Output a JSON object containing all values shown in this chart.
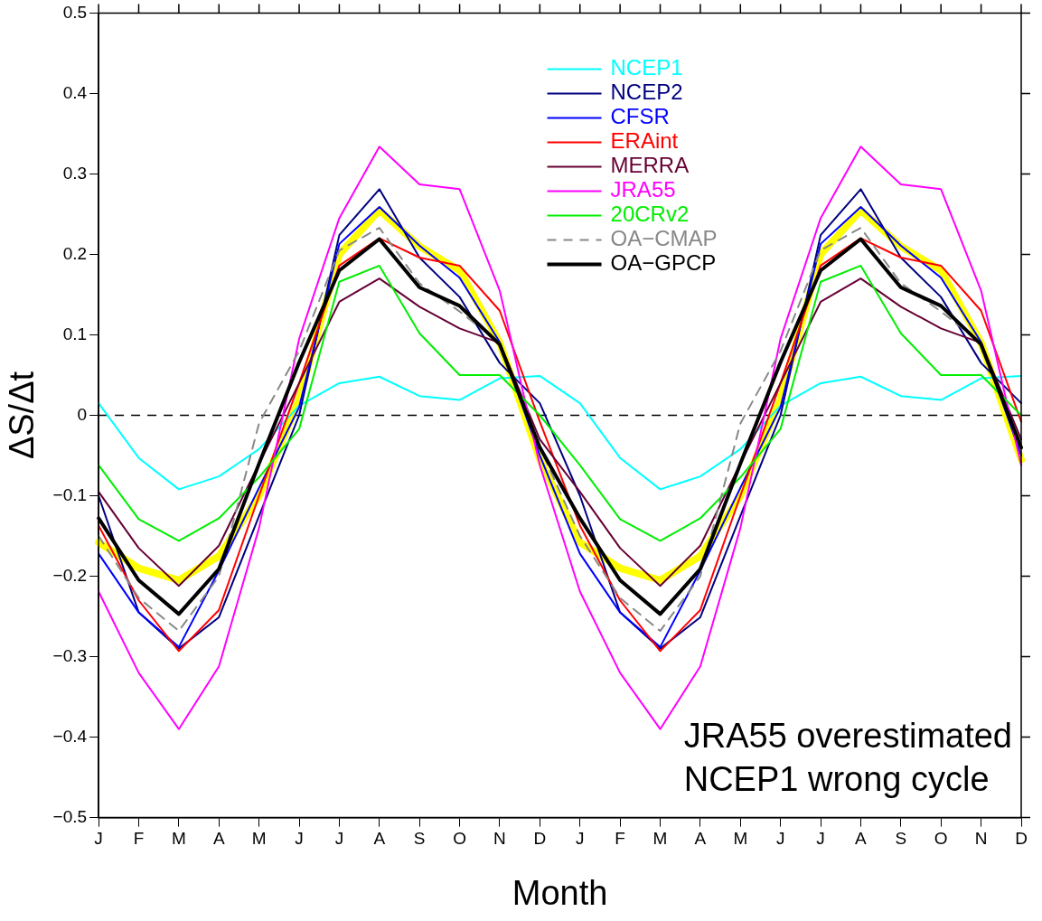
{
  "chart_data": {
    "type": "line",
    "xlabel": "Month",
    "ylabel": "ΔS/Δt",
    "categories": [
      "J",
      "F",
      "M",
      "A",
      "M",
      "J",
      "J",
      "A",
      "S",
      "O",
      "N",
      "D",
      "J",
      "F",
      "M",
      "A",
      "M",
      "J",
      "J",
      "A",
      "S",
      "O",
      "N",
      "D"
    ],
    "ylim": [
      -0.5,
      0.5
    ],
    "yticks": [
      {
        "value": -0.5,
        "label": "−0.5"
      },
      {
        "value": -0.4,
        "label": "−0.4"
      },
      {
        "value": -0.3,
        "label": "−0.3"
      },
      {
        "value": -0.2,
        "label": "−0.2"
      },
      {
        "value": -0.1,
        "label": "−0.1"
      },
      0,
      0.1,
      0.2,
      0.3,
      0.4,
      0.5
    ],
    "legend": "top",
    "marker": "none",
    "ref_lines": [
      {
        "axis": "y",
        "value": 0,
        "color": "#000000",
        "line_style": "dashed"
      }
    ],
    "annotations": [
      "JRA55 overestimated",
      "NCEP1 wrong cycle"
    ],
    "series": [
      {
        "color": "#ffff00",
        "values": [
          -0.158,
          -0.19,
          -0.205,
          -0.175,
          -0.1,
          0.02,
          0.2,
          0.255,
          0.21,
          0.18,
          0.09,
          -0.055,
          -0.158,
          -0.19,
          -0.205,
          -0.175,
          -0.1,
          0.02,
          0.2,
          0.255,
          0.21,
          0.18,
          0.09,
          -0.055
        ]
      },
      {
        "name": "NCEP1",
        "color": "#00ffff",
        "values": [
          0.015,
          -0.053,
          -0.092,
          -0.076,
          -0.042,
          0.012,
          0.04,
          0.048,
          0.024,
          0.019,
          0.046,
          0.049,
          0.015,
          -0.053,
          -0.092,
          -0.076,
          -0.042,
          0.012,
          0.04,
          0.048,
          0.024,
          0.019,
          0.046,
          0.049
        ]
      },
      {
        "name": "NCEP2",
        "color": "#000080",
        "values": [
          -0.1,
          -0.245,
          -0.29,
          -0.251,
          -0.125,
          0.0,
          0.224,
          0.281,
          0.196,
          0.147,
          0.065,
          0.015,
          -0.1,
          -0.245,
          -0.29,
          -0.251,
          -0.125,
          0.0,
          0.224,
          0.281,
          0.196,
          0.147,
          0.065,
          0.015
        ]
      },
      {
        "name": "CFSR",
        "color": "#0000ff",
        "values": [
          -0.172,
          -0.245,
          -0.288,
          -0.193,
          -0.09,
          0.01,
          0.213,
          0.259,
          0.211,
          0.171,
          0.091,
          -0.05,
          -0.172,
          -0.245,
          -0.288,
          -0.193,
          -0.09,
          0.01,
          0.213,
          0.259,
          0.211,
          0.171,
          0.091,
          -0.05
        ]
      },
      {
        "name": "ERAint",
        "color": "#ff0000",
        "values": [
          -0.137,
          -0.23,
          -0.293,
          -0.242,
          -0.1,
          0.04,
          0.186,
          0.22,
          0.196,
          0.186,
          0.13,
          -0.008,
          -0.137,
          -0.23,
          -0.293,
          -0.242,
          -0.1,
          0.04,
          0.186,
          0.22,
          0.196,
          0.186,
          0.13,
          -0.008
        ]
      },
      {
        "name": "MERRA",
        "color": "#660033",
        "values": [
          -0.095,
          -0.165,
          -0.212,
          -0.162,
          -0.06,
          0.04,
          0.141,
          0.17,
          0.135,
          0.108,
          0.09,
          -0.03,
          -0.095,
          -0.165,
          -0.212,
          -0.162,
          -0.06,
          0.04,
          0.141,
          0.17,
          0.135,
          0.108,
          0.09,
          -0.03
        ]
      },
      {
        "name": "JRA55",
        "color": "#ff00ff",
        "values": [
          -0.219,
          -0.32,
          -0.39,
          -0.312,
          -0.14,
          0.095,
          0.245,
          0.334,
          0.287,
          0.281,
          0.155,
          -0.062,
          -0.219,
          -0.32,
          -0.39,
          -0.312,
          -0.14,
          0.095,
          0.245,
          0.334,
          0.287,
          0.281,
          0.155,
          -0.062
        ]
      },
      {
        "name": "20CRv2",
        "color": "#00ee00",
        "values": [
          -0.062,
          -0.129,
          -0.156,
          -0.128,
          -0.077,
          -0.017,
          0.166,
          0.186,
          0.102,
          0.05,
          0.05,
          0.0,
          -0.062,
          -0.129,
          -0.156,
          -0.128,
          -0.077,
          -0.017,
          0.166,
          0.186,
          0.102,
          0.05,
          0.05,
          0.0
        ]
      },
      {
        "name": "OA−CMAP",
        "color": "#888888",
        "line_style": "dashed",
        "values": [
          -0.15,
          -0.227,
          -0.268,
          -0.2,
          -0.01,
          0.08,
          0.205,
          0.233,
          0.164,
          0.129,
          0.09,
          -0.04,
          -0.15,
          -0.227,
          -0.268,
          -0.2,
          -0.01,
          0.08,
          0.205,
          0.233,
          0.164,
          0.129,
          0.09,
          -0.04
        ]
      },
      {
        "name": "OA−GPCP",
        "color": "#000000",
        "values": [
          -0.128,
          -0.205,
          -0.247,
          -0.191,
          -0.06,
          0.066,
          0.18,
          0.219,
          0.159,
          0.136,
          0.088,
          -0.04,
          -0.128,
          -0.205,
          -0.247,
          -0.191,
          -0.06,
          0.066,
          0.18,
          0.219,
          0.159,
          0.136,
          0.088,
          -0.04
        ]
      }
    ]
  }
}
